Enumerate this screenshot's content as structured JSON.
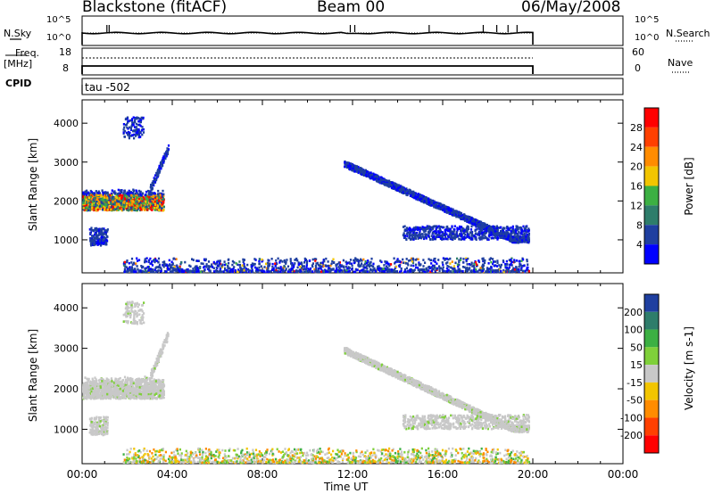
{
  "header": {
    "title": "Blackstone (fitACF)",
    "beam": "Beam 00",
    "date": "06/May/2008"
  },
  "top_panels": {
    "nsky_label": "N.Sky",
    "nsearch_label": "N.Search",
    "noise_ticks_left": [
      "10^5",
      "10^0"
    ],
    "noise_ticks_right": [
      "10^5",
      "10^0"
    ],
    "freq_label": "Freq.",
    "freq_unit": "[MHz]",
    "freq_ticks": [
      "18",
      "8"
    ],
    "nave_label": "Nave",
    "nave_ticks": [
      "60",
      "0"
    ],
    "cpid_label": "CPID",
    "cpid_value": "tau -502"
  },
  "chart_data": [
    {
      "type": "heatmap",
      "name": "power",
      "ylabel": "Slant Range [km]",
      "ylim": [
        150,
        4600
      ],
      "yticks": [
        1000,
        2000,
        3000,
        4000
      ],
      "x_ticks": [
        "00:00",
        "04:00",
        "08:00",
        "12:00",
        "16:00",
        "20:00",
        "00:00"
      ],
      "xlim_hours": [
        0,
        24
      ],
      "colorbar": {
        "label": "Power [dB]",
        "ticks": [
          "4",
          "8",
          "12",
          "16",
          "20",
          "24",
          "28"
        ],
        "colors": [
          "#0000ff",
          "#1f3fa0",
          "#2e7d6b",
          "#3cb043",
          "#f2c500",
          "#ff8c00",
          "#ff4000",
          "#ff0000"
        ]
      },
      "scatter_regions": [
        {
          "t0": 0.0,
          "t1": 3.6,
          "r0": 1750,
          "r1": 2350,
          "color": "mix_strong"
        },
        {
          "t0": 0.3,
          "t1": 1.1,
          "r0": 850,
          "r1": 1300,
          "color": "mix_weak"
        },
        {
          "t0": 1.8,
          "t1": 2.8,
          "r0": 3600,
          "r1": 4150,
          "color": "mix_weak"
        },
        {
          "t0": 3.0,
          "t1": 3.9,
          "r0": 2300,
          "r1": 3300,
          "color": "blue"
        },
        {
          "t0": 11.6,
          "t1": 19.8,
          "r0": 850,
          "r1": 3000,
          "color": "arc"
        },
        {
          "t0": 1.8,
          "t1": 19.8,
          "r0": 150,
          "r1": 550,
          "color": "mix_low"
        }
      ]
    },
    {
      "type": "heatmap",
      "name": "velocity",
      "ylabel": "Slant Range [km]",
      "ylim": [
        150,
        4600
      ],
      "yticks": [
        1000,
        2000,
        3000,
        4000
      ],
      "x_ticks": [
        "00:00",
        "04:00",
        "08:00",
        "12:00",
        "16:00",
        "20:00",
        "00:00"
      ],
      "xlim_hours": [
        0,
        24
      ],
      "colorbar": {
        "label": "Velocity [m s-1]",
        "ticks": [
          "200",
          "100",
          "50",
          "15",
          "-15",
          "-50",
          "-100",
          "-200"
        ],
        "colors": [
          "#1f3fa0",
          "#2e7d6b",
          "#3cb043",
          "#7fd03a",
          "#c8c8c8",
          "#f2c500",
          "#ff8c00",
          "#ff4000",
          "#ff0000"
        ]
      }
    }
  ],
  "xlabel": "Time UT"
}
